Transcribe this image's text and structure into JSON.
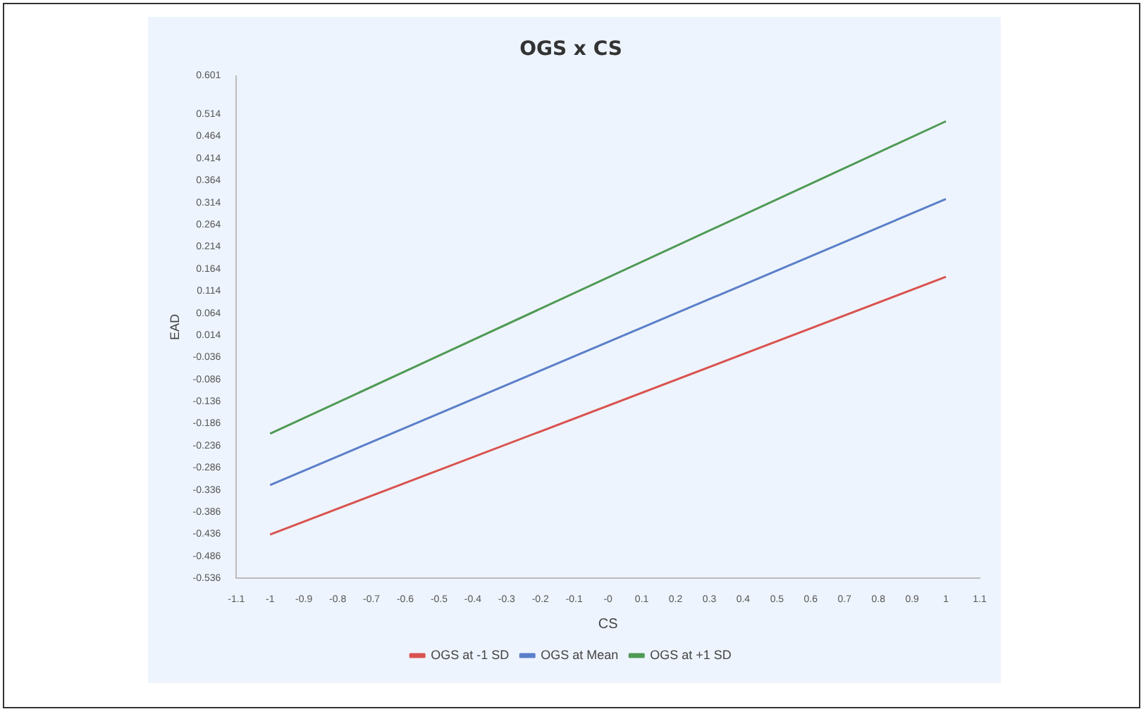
{
  "chart_data": {
    "type": "line",
    "title": "OGS x CS",
    "xlabel": "CS",
    "ylabel": "EAD",
    "x": [
      -1,
      1
    ],
    "series": [
      {
        "name": "OGS at -1 SD",
        "color": "#d9534f",
        "values": [
          -0.437,
          0.146
        ]
      },
      {
        "name": "OGS at Mean",
        "color": "#5b7fc9",
        "values": [
          -0.325,
          0.322
        ]
      },
      {
        "name": "OGS at +1 SD",
        "color": "#4f9a55",
        "values": [
          -0.209,
          0.498
        ]
      }
    ],
    "xlim": [
      -1.1,
      1.1
    ],
    "xticks": [
      -1.1,
      -1,
      -0.9,
      -0.8,
      -0.7,
      -0.6,
      -0.5,
      -0.4,
      -0.3,
      -0.2,
      -0.1,
      {
        "value": 0,
        "label": "-0"
      },
      0.1,
      0.2,
      0.3,
      0.4,
      0.5,
      0.6,
      0.7,
      0.8,
      0.9,
      1,
      1.1
    ],
    "ylim": [
      -0.536,
      0.601
    ],
    "yticks": [
      -0.536,
      -0.486,
      -0.436,
      -0.386,
      -0.336,
      -0.286,
      -0.236,
      -0.186,
      -0.136,
      -0.086,
      -0.036,
      0.014,
      0.064,
      0.114,
      0.164,
      0.214,
      0.264,
      0.314,
      0.364,
      0.414,
      0.464,
      0.514,
      0.601
    ],
    "grid": false,
    "legend": "bottom",
    "marker": "none",
    "line_style": "solid"
  }
}
